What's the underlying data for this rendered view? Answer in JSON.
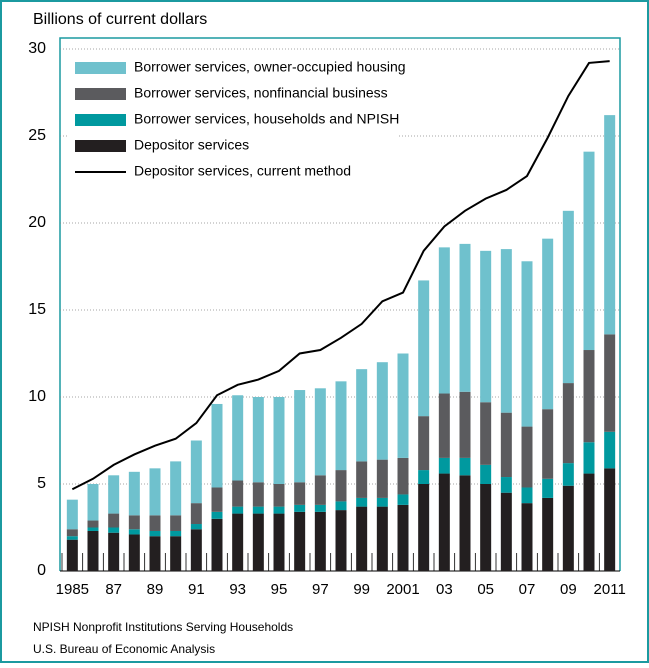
{
  "chart_data": {
    "type": "bar",
    "stacked": true,
    "y_label": "Billions of current dollars",
    "categories": [
      "1985",
      null,
      "87",
      null,
      "89",
      null,
      "91",
      null,
      "93",
      null,
      "95",
      null,
      "97",
      null,
      "99",
      null,
      "2001",
      null,
      "03",
      null,
      "05",
      null,
      "07",
      null,
      "09",
      null,
      "2011"
    ],
    "series": [
      {
        "name": "Borrower services, owner-occupied housing",
        "type": "bar",
        "color": "#6fc1cd",
        "values": [
          1.7,
          2.1,
          2.2,
          2.5,
          2.7,
          3.1,
          3.6,
          4.8,
          4.9,
          4.9,
          5.0,
          5.3,
          5.0,
          5.1,
          5.3,
          5.6,
          6.0,
          7.8,
          8.4,
          8.5,
          8.7,
          9.4,
          9.5,
          9.8,
          9.9,
          11.4,
          12.6
        ]
      },
      {
        "name": "Borrower services, nonfinancial business",
        "type": "bar",
        "color": "#5b5b5e",
        "values": [
          0.4,
          0.4,
          0.8,
          0.8,
          0.9,
          0.9,
          1.2,
          1.4,
          1.5,
          1.4,
          1.3,
          1.3,
          1.7,
          1.8,
          2.1,
          2.2,
          2.1,
          3.1,
          3.7,
          3.8,
          3.6,
          3.7,
          3.5,
          4.0,
          4.6,
          5.3,
          5.6
        ]
      },
      {
        "name": "Borrower services, households and NPISH",
        "type": "bar",
        "color": "#00999f",
        "values": [
          0.2,
          0.2,
          0.3,
          0.3,
          0.3,
          0.3,
          0.3,
          0.4,
          0.4,
          0.4,
          0.4,
          0.4,
          0.4,
          0.5,
          0.5,
          0.5,
          0.6,
          0.8,
          0.9,
          1.0,
          1.1,
          0.9,
          0.9,
          1.1,
          1.3,
          1.8,
          2.1
        ]
      },
      {
        "name": "Depositor services",
        "type": "bar",
        "color": "#231f20",
        "values": [
          1.8,
          2.3,
          2.2,
          2.1,
          2.0,
          2.0,
          2.4,
          3.0,
          3.3,
          3.3,
          3.3,
          3.4,
          3.4,
          3.5,
          3.7,
          3.7,
          3.8,
          5.0,
          5.6,
          5.5,
          5.0,
          4.5,
          3.9,
          4.2,
          4.9,
          5.6,
          5.9
        ]
      },
      {
        "name": "Depositor services, current method",
        "type": "line",
        "color": "#000000",
        "values": [
          4.7,
          5.3,
          6.1,
          6.7,
          7.2,
          7.6,
          8.5,
          10.1,
          10.7,
          11.0,
          11.5,
          12.5,
          12.7,
          13.4,
          14.2,
          15.5,
          16.0,
          18.4,
          19.8,
          20.7,
          21.4,
          21.9,
          22.7,
          24.9,
          27.3,
          29.2,
          29.3
        ]
      }
    ],
    "ylim": [
      0,
      30
    ],
    "yticks": [
      0,
      5,
      10,
      15,
      20,
      25,
      30
    ],
    "grid": true,
    "legend": "top-left",
    "notes": [
      "NPISH Nonprofit Institutions Serving Households",
      "U.S. Bureau of Economic Analysis"
    ]
  }
}
